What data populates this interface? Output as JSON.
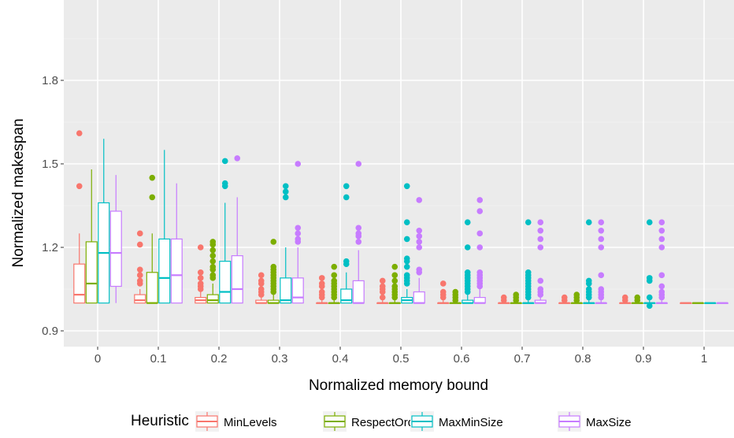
{
  "chart_data": {
    "type": "boxplot",
    "xlabel": "Normalized memory bound",
    "ylabel": "Normalized makespan",
    "categories": [
      "0",
      "0.1",
      "0.2",
      "0.3",
      "0.4",
      "0.5",
      "0.6",
      "0.7",
      "0.8",
      "0.9",
      "1"
    ],
    "y_ticks": [
      0.9,
      1.2,
      1.5,
      1.8
    ],
    "y_tick_labels": [
      "0.9",
      "1.2",
      "1.5",
      "1.8"
    ],
    "ylim": [
      0.85,
      2.0
    ],
    "grid": true,
    "legend": {
      "title": "Heuristic",
      "position": "bottom"
    },
    "series": [
      {
        "name": "MinLevels",
        "color": "#F8766D",
        "boxes": [
          {
            "q1": 1.0,
            "median": 1.03,
            "q3": 1.14,
            "lo": 1.0,
            "hi": 1.25,
            "out": [
              1.61,
              1.42
            ]
          },
          {
            "q1": 1.0,
            "median": 1.01,
            "q3": 1.03,
            "lo": 1.0,
            "hi": 1.05,
            "out": [
              1.25,
              1.21,
              1.12,
              1.1,
              1.08,
              1.07
            ]
          },
          {
            "q1": 1.0,
            "median": 1.01,
            "q3": 1.02,
            "lo": 1.0,
            "hi": 1.04,
            "out": [
              1.2,
              1.11,
              1.09,
              1.07,
              1.06,
              1.05
            ]
          },
          {
            "q1": 1.0,
            "median": 1.0,
            "q3": 1.01,
            "lo": 1.0,
            "hi": 1.02,
            "out": [
              1.1,
              1.08,
              1.07,
              1.05,
              1.04,
              1.03
            ]
          },
          {
            "q1": 1.0,
            "median": 1.0,
            "q3": 1.0,
            "lo": 1.0,
            "hi": 1.01,
            "out": [
              1.09,
              1.07,
              1.06,
              1.04,
              1.03,
              1.02
            ]
          },
          {
            "q1": 1.0,
            "median": 1.0,
            "q3": 1.0,
            "lo": 1.0,
            "hi": 1.01,
            "out": [
              1.08,
              1.06,
              1.05,
              1.04,
              1.02
            ]
          },
          {
            "q1": 1.0,
            "median": 1.0,
            "q3": 1.0,
            "lo": 1.0,
            "hi": 1.01,
            "out": [
              1.07,
              1.04,
              1.03,
              1.02
            ]
          },
          {
            "q1": 1.0,
            "median": 1.0,
            "q3": 1.0,
            "lo": 1.0,
            "hi": 1.0,
            "out": [
              1.02,
              1.01
            ]
          },
          {
            "q1": 1.0,
            "median": 1.0,
            "q3": 1.0,
            "lo": 1.0,
            "hi": 1.0,
            "out": [
              1.02,
              1.01
            ]
          },
          {
            "q1": 1.0,
            "median": 1.0,
            "q3": 1.0,
            "lo": 1.0,
            "hi": 1.0,
            "out": [
              1.02,
              1.01
            ]
          },
          {
            "q1": 1.0,
            "median": 1.0,
            "q3": 1.0,
            "lo": 1.0,
            "hi": 1.0,
            "out": []
          }
        ]
      },
      {
        "name": "RespectOrder",
        "color": "#7CAE00",
        "boxes": [
          {
            "q1": 1.0,
            "median": 1.07,
            "q3": 1.22,
            "lo": 1.0,
            "hi": 1.48,
            "out": []
          },
          {
            "q1": 1.0,
            "median": 1.0,
            "q3": 1.11,
            "lo": 1.0,
            "hi": 1.25,
            "out": [
              1.45,
              1.38
            ]
          },
          {
            "q1": 1.0,
            "median": 1.01,
            "q3": 1.03,
            "lo": 1.0,
            "hi": 1.07,
            "out": [
              1.22,
              1.21,
              1.19,
              1.17,
              1.15,
              1.13,
              1.12,
              1.1,
              1.09
            ]
          },
          {
            "q1": 1.0,
            "median": 1.0,
            "q3": 1.01,
            "lo": 1.0,
            "hi": 1.03,
            "out": [
              1.22,
              1.13,
              1.12,
              1.11,
              1.1,
              1.09,
              1.08,
              1.07,
              1.06,
              1.05,
              1.04
            ]
          },
          {
            "q1": 1.0,
            "median": 1.0,
            "q3": 1.0,
            "lo": 1.0,
            "hi": 1.01,
            "out": [
              1.13,
              1.1,
              1.08,
              1.07,
              1.06,
              1.05,
              1.04,
              1.03,
              1.02
            ]
          },
          {
            "q1": 1.0,
            "median": 1.0,
            "q3": 1.0,
            "lo": 1.0,
            "hi": 1.01,
            "out": [
              1.13,
              1.1,
              1.08,
              1.06,
              1.05,
              1.04,
              1.03,
              1.02
            ]
          },
          {
            "q1": 1.0,
            "median": 1.0,
            "q3": 1.0,
            "lo": 1.0,
            "hi": 1.01,
            "out": [
              1.04,
              1.03,
              1.02,
              1.01
            ]
          },
          {
            "q1": 1.0,
            "median": 1.0,
            "q3": 1.0,
            "lo": 1.0,
            "hi": 1.0,
            "out": [
              1.03,
              1.02,
              1.01
            ]
          },
          {
            "q1": 1.0,
            "median": 1.0,
            "q3": 1.0,
            "lo": 1.0,
            "hi": 1.0,
            "out": [
              1.03,
              1.02,
              1.01
            ]
          },
          {
            "q1": 1.0,
            "median": 1.0,
            "q3": 1.0,
            "lo": 1.0,
            "hi": 1.0,
            "out": [
              1.02,
              1.01
            ]
          },
          {
            "q1": 1.0,
            "median": 1.0,
            "q3": 1.0,
            "lo": 1.0,
            "hi": 1.0,
            "out": []
          }
        ]
      },
      {
        "name": "MaxMinSize",
        "color": "#00BFC4",
        "boxes": [
          {
            "q1": 1.0,
            "median": 1.18,
            "q3": 1.36,
            "lo": 1.0,
            "hi": 1.59,
            "out": []
          },
          {
            "q1": 1.0,
            "median": 1.09,
            "q3": 1.23,
            "lo": 1.0,
            "hi": 1.55,
            "out": []
          },
          {
            "q1": 1.0,
            "median": 1.04,
            "q3": 1.15,
            "lo": 1.0,
            "hi": 1.36,
            "out": [
              1.51,
              1.43,
              1.42
            ]
          },
          {
            "q1": 1.0,
            "median": 1.01,
            "q3": 1.09,
            "lo": 1.0,
            "hi": 1.2,
            "out": [
              1.42,
              1.4,
              1.38
            ]
          },
          {
            "q1": 1.0,
            "median": 1.01,
            "q3": 1.05,
            "lo": 1.0,
            "hi": 1.11,
            "out": [
              1.42,
              1.38,
              1.15,
              1.14
            ]
          },
          {
            "q1": 1.0,
            "median": 1.01,
            "q3": 1.02,
            "lo": 1.0,
            "hi": 1.05,
            "out": [
              1.42,
              1.29,
              1.23,
              1.16,
              1.15,
              1.13,
              1.1,
              1.09,
              1.08,
              1.07
            ]
          },
          {
            "q1": 1.0,
            "median": 1.0,
            "q3": 1.01,
            "lo": 1.0,
            "hi": 1.03,
            "out": [
              1.29,
              1.2,
              1.11,
              1.1,
              1.09,
              1.08,
              1.07,
              1.06,
              1.05,
              1.04
            ]
          },
          {
            "q1": 1.0,
            "median": 1.0,
            "q3": 1.0,
            "lo": 1.0,
            "hi": 1.01,
            "out": [
              1.29,
              1.11,
              1.1,
              1.09,
              1.08,
              1.07,
              1.06,
              1.05,
              1.04,
              1.03,
              1.02
            ]
          },
          {
            "q1": 1.0,
            "median": 1.0,
            "q3": 1.0,
            "lo": 1.0,
            "hi": 1.01,
            "out": [
              1.29,
              1.08,
              1.07,
              1.05,
              1.04,
              1.03,
              1.02
            ]
          },
          {
            "q1": 1.0,
            "median": 1.0,
            "q3": 1.0,
            "lo": 1.0,
            "hi": 1.01,
            "out": [
              1.29,
              1.09,
              1.08,
              1.02,
              0.99
            ]
          },
          {
            "q1": 1.0,
            "median": 1.0,
            "q3": 1.0,
            "lo": 1.0,
            "hi": 1.0,
            "out": []
          }
        ]
      },
      {
        "name": "MaxSize",
        "color": "#C77CFF",
        "boxes": [
          {
            "q1": 1.06,
            "median": 1.18,
            "q3": 1.33,
            "lo": 1.0,
            "hi": 1.46,
            "out": []
          },
          {
            "q1": 1.0,
            "median": 1.1,
            "q3": 1.23,
            "lo": 1.0,
            "hi": 1.43,
            "out": []
          },
          {
            "q1": 1.0,
            "median": 1.05,
            "q3": 1.17,
            "lo": 1.0,
            "hi": 1.38,
            "out": [
              1.52
            ]
          },
          {
            "q1": 1.0,
            "median": 1.02,
            "q3": 1.09,
            "lo": 1.0,
            "hi": 1.2,
            "out": [
              1.5,
              1.27,
              1.25,
              1.23,
              1.22
            ]
          },
          {
            "q1": 1.0,
            "median": 1.0,
            "q3": 1.08,
            "lo": 1.0,
            "hi": 1.19,
            "out": [
              1.5,
              1.27,
              1.25,
              1.24,
              1.22
            ]
          },
          {
            "q1": 1.0,
            "median": 1.0,
            "q3": 1.04,
            "lo": 1.0,
            "hi": 1.09,
            "out": [
              1.37,
              1.26,
              1.24,
              1.22,
              1.2,
              1.12,
              1.11
            ]
          },
          {
            "q1": 1.0,
            "median": 1.0,
            "q3": 1.02,
            "lo": 1.0,
            "hi": 1.05,
            "out": [
              1.37,
              1.33,
              1.25,
              1.2,
              1.11,
              1.1,
              1.09,
              1.08,
              1.07,
              1.06
            ]
          },
          {
            "q1": 1.0,
            "median": 1.0,
            "q3": 1.01,
            "lo": 1.0,
            "hi": 1.02,
            "out": [
              1.29,
              1.26,
              1.23,
              1.2,
              1.08,
              1.05,
              1.04,
              1.03
            ]
          },
          {
            "q1": 1.0,
            "median": 1.0,
            "q3": 1.0,
            "lo": 1.0,
            "hi": 1.01,
            "out": [
              1.29,
              1.26,
              1.23,
              1.2,
              1.1,
              1.05,
              1.04,
              1.03,
              1.02
            ]
          },
          {
            "q1": 1.0,
            "median": 1.0,
            "q3": 1.0,
            "lo": 1.0,
            "hi": 1.01,
            "out": [
              1.29,
              1.26,
              1.23,
              1.2,
              1.1,
              1.06,
              1.04,
              1.03,
              1.02
            ]
          },
          {
            "q1": 1.0,
            "median": 1.0,
            "q3": 1.0,
            "lo": 1.0,
            "hi": 1.0,
            "out": []
          }
        ]
      }
    ]
  }
}
